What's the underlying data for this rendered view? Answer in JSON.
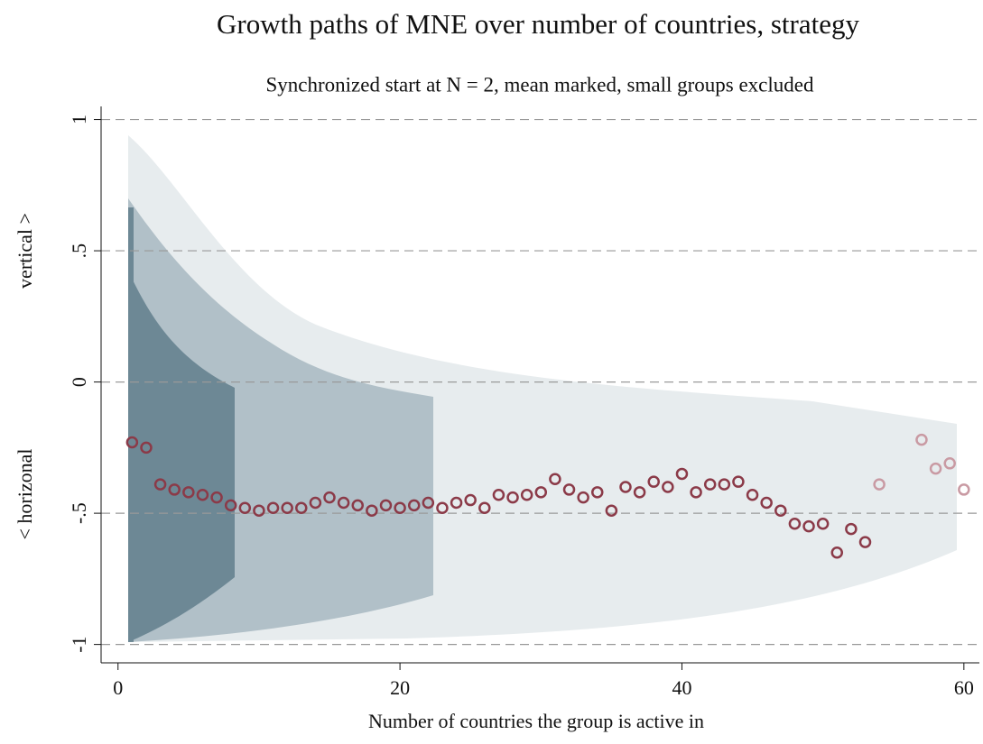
{
  "chart_data": {
    "type": "scatter",
    "title": "Growth paths of MNE over number of countries, strategy",
    "subtitle": "Synchronized start at N = 2, mean marked, small groups excluded",
    "xlabel": "Number of countries the group is active in",
    "ylabel": [
      "vertical >",
      "< horizonal"
    ],
    "xlim": [
      -1.2,
      61.1
    ],
    "ylim": [
      -1.07,
      1.05
    ],
    "xticks": [
      0,
      20,
      40,
      60
    ],
    "yticks": [
      -1,
      {
        "value": -0.5,
        "label": "-.5"
      },
      0,
      {
        "value": 0.5,
        "label": ".5"
      },
      1
    ],
    "grid": true,
    "series": [
      {
        "color": "#8b3a48",
        "x": [
          1,
          2,
          3,
          4,
          5,
          6,
          7,
          8,
          9,
          10,
          11,
          12,
          13,
          14,
          15,
          16,
          17,
          18,
          19,
          20,
          21,
          22,
          23,
          24,
          25,
          26,
          27,
          28,
          29,
          30,
          31,
          32,
          33,
          34,
          35,
          36,
          37,
          38,
          39,
          40,
          41,
          42,
          43,
          44,
          45,
          46,
          47,
          48,
          49,
          50,
          51,
          52,
          53
        ],
        "values": [
          -0.23,
          -0.25,
          -0.39,
          -0.41,
          -0.42,
          -0.43,
          -0.44,
          -0.47,
          -0.48,
          -0.49,
          -0.48,
          -0.48,
          -0.48,
          -0.46,
          -0.44,
          -0.46,
          -0.47,
          -0.49,
          -0.47,
          -0.48,
          -0.47,
          -0.46,
          -0.48,
          -0.46,
          -0.45,
          -0.48,
          -0.43,
          -0.44,
          -0.43,
          -0.42,
          -0.37,
          -0.41,
          -0.44,
          -0.42,
          -0.49,
          -0.4,
          -0.42,
          -0.38,
          -0.4,
          -0.35,
          -0.42,
          -0.39,
          -0.39,
          -0.38,
          -0.43,
          -0.46,
          -0.49,
          -0.54,
          -0.55,
          -0.54,
          -0.65,
          -0.56,
          -0.61
        ]
      },
      {
        "color": "#c99aa3",
        "x": [
          54,
          57,
          58,
          59,
          60
        ],
        "values": [
          -0.39,
          -0.22,
          -0.33,
          -0.31,
          -0.41
        ]
      }
    ]
  }
}
